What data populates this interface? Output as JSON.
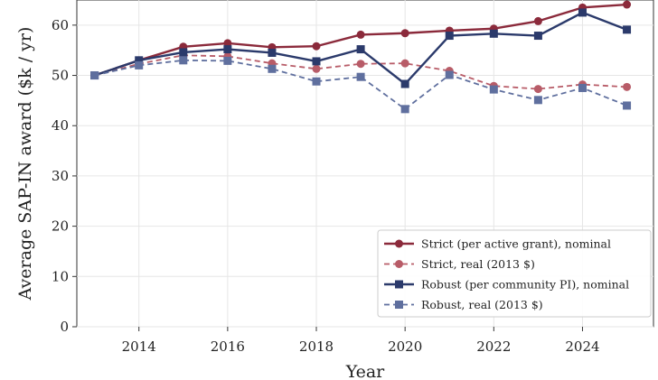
{
  "chart_data": {
    "type": "line",
    "title": "",
    "xlabel": "Year",
    "ylabel": "Average SAP-IN award ($k / yr)",
    "xlim": [
      2012.6,
      2025.6
    ],
    "ylim": [
      0,
      65
    ],
    "xticks": [
      2014,
      2016,
      2018,
      2020,
      2022,
      2024
    ],
    "yticks": [
      0,
      10,
      20,
      30,
      40,
      50,
      60
    ],
    "grid": true,
    "legend_position": "lower-right",
    "x": [
      2013,
      2014,
      2015,
      2016,
      2017,
      2018,
      2019,
      2020,
      2021,
      2022,
      2023,
      2024,
      2025
    ],
    "series": [
      {
        "name": "Strict (per active grant), nominal",
        "values": [
          50.0,
          53.0,
          55.7,
          56.4,
          55.6,
          55.8,
          58.1,
          58.4,
          58.9,
          59.3,
          60.8,
          63.5,
          64.1
        ],
        "color": "#8b2a3b",
        "line_style": "solid",
        "marker": "circle"
      },
      {
        "name": "Strict, real (2013 $)",
        "values": [
          50.0,
          52.3,
          54.0,
          53.8,
          52.4,
          51.3,
          52.3,
          52.4,
          50.9,
          47.9,
          47.3,
          48.2,
          47.7
        ],
        "color": "#b85c68",
        "line_style": "dashed",
        "marker": "circle"
      },
      {
        "name": "Robust (per community PI), nominal",
        "values": [
          50.0,
          53.0,
          54.6,
          55.2,
          54.5,
          52.8,
          55.2,
          48.3,
          57.9,
          58.3,
          57.9,
          62.5,
          59.1
        ],
        "color": "#2b3a6b",
        "line_style": "solid",
        "marker": "square"
      },
      {
        "name": "Robust, real (2013 $)",
        "values": [
          50.0,
          52.0,
          53.0,
          52.9,
          51.3,
          48.8,
          49.7,
          43.3,
          50.1,
          47.2,
          45.1,
          47.5,
          44.0
        ],
        "color": "#5f6f9e",
        "line_style": "dashed",
        "marker": "square"
      }
    ]
  }
}
